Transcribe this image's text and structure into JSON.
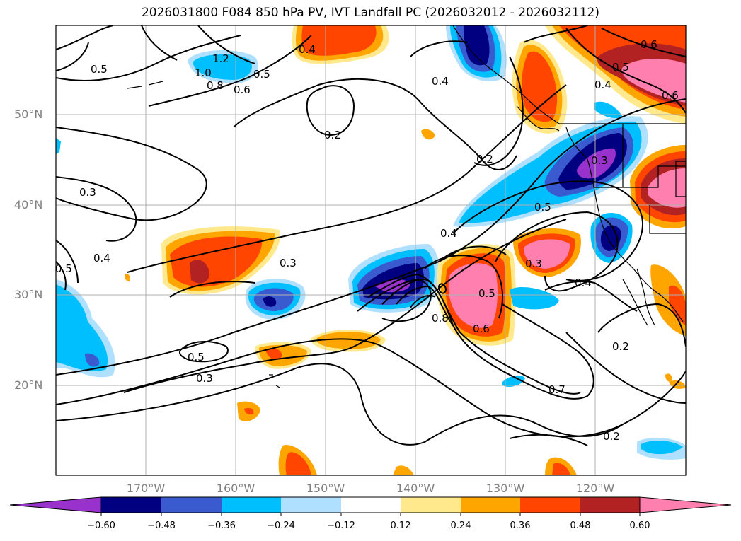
{
  "title": "2026031800 F084 850 hPa PV, IVT Landfall PC (2026032012 - 2026032112)",
  "lat_labels": [
    "50°N",
    "40°N",
    "30°N",
    "20°N"
  ],
  "lon_labels": [
    "170°W",
    "160°W",
    "150°W",
    "140°W",
    "130°W",
    "120°W"
  ],
  "colorbar": {
    "ticks": [
      "−0.60",
      "−0.48",
      "−0.36",
      "−0.24",
      "−0.12",
      "0.12",
      "0.24",
      "0.36",
      "0.48",
      "0.60"
    ],
    "colors": [
      "#9932cc",
      "#000080",
      "#3a5bd0",
      "#00bfff",
      "#b0e0ff",
      "#ffffff",
      "#ffe98c",
      "#ffa500",
      "#ff4500",
      "#b22222",
      "#ff7fae"
    ]
  },
  "contour_labels": [
    "0.5",
    "1.2",
    "1.0",
    "0.8",
    "0.6",
    "0.5",
    "0.4",
    "0.4",
    "0.6",
    "0.5",
    "0.4",
    "0.6",
    "0.2",
    "0.2",
    "0.3",
    "0.3",
    "0.5",
    "0.4",
    "0.5",
    "0.3",
    "0.5",
    "0.3",
    "0.4",
    "0.8",
    "0.5",
    "0.6",
    "0.7",
    "0.3",
    "0.4",
    "0.2",
    "0.2"
  ]
}
